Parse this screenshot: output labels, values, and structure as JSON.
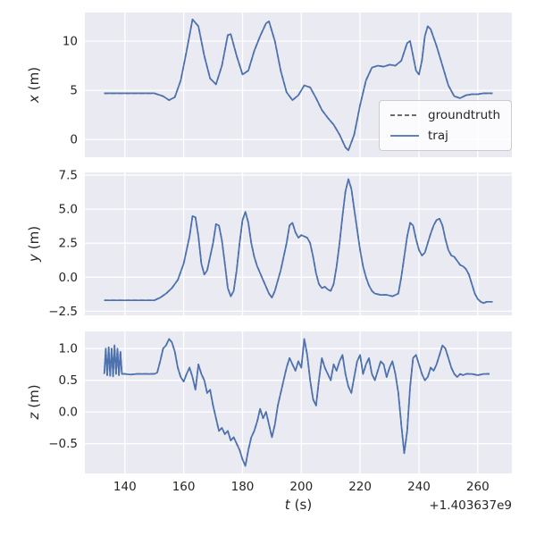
{
  "figure": {
    "background": "#ffffff",
    "axes_background": "#eaeaf2",
    "grid_color": "#ffffff",
    "text_color": "#262626",
    "traj_color": "#4c72b0",
    "groundtruth_color": "#3a3a3a"
  },
  "legend": {
    "position": "lower right of first subplot",
    "items": [
      {
        "label": "groundtruth",
        "style": "dashed",
        "color": "#3a3a3a"
      },
      {
        "label": "traj",
        "style": "solid",
        "color": "#4c72b0"
      }
    ]
  },
  "axes_common": {
    "xlabel_var": "t",
    "xlabel_unit": "(s)",
    "x_offset_text": "+1.403637e9",
    "xlim": [
      126.4,
      271.6
    ],
    "xticks": [
      140,
      160,
      180,
      200,
      220,
      240,
      260
    ],
    "xtick_labels": [
      "140",
      "160",
      "180",
      "200",
      "220",
      "240",
      "260"
    ],
    "grid": true
  },
  "chart_data": [
    {
      "id": "x",
      "type": "line",
      "ylabel_var": "x",
      "ylabel_unit": "(m)",
      "ylim": [
        -1.8,
        12.9
      ],
      "yticks": [
        0,
        5,
        10
      ],
      "ytick_labels": [
        "0",
        "5",
        "10"
      ],
      "series": [
        {
          "name": "groundtruth",
          "color": "#3a3a3a",
          "dash": "dashed",
          "values_ref": "values"
        },
        {
          "name": "traj",
          "color": "#4c72b0",
          "dash": "solid",
          "values_ref": "values"
        }
      ],
      "note": "groundtruth and traj overlap almost exactly",
      "x": [
        133,
        150,
        153,
        155,
        157,
        159,
        161,
        163,
        165,
        167,
        169,
        171,
        173,
        175,
        176,
        178,
        180,
        182,
        184,
        186,
        188,
        189,
        191,
        193,
        195,
        197,
        199,
        201,
        203,
        205,
        207,
        209,
        211,
        213,
        215,
        216,
        218,
        220,
        222,
        224,
        226,
        228,
        230,
        232,
        234,
        236,
        237,
        238,
        239,
        240,
        241,
        242,
        243,
        244,
        246,
        248,
        250,
        252,
        254,
        256,
        258,
        260,
        262,
        265
      ],
      "values": [
        4.7,
        4.7,
        4.4,
        4.0,
        4.3,
        6.0,
        9.0,
        12.2,
        11.5,
        8.5,
        6.2,
        5.6,
        7.5,
        10.6,
        10.7,
        8.5,
        6.6,
        7.0,
        9.0,
        10.5,
        11.8,
        12.0,
        10.0,
        7.0,
        4.8,
        4.0,
        4.5,
        5.5,
        5.3,
        4.2,
        3.0,
        2.2,
        1.5,
        0.5,
        -0.8,
        -1.1,
        0.5,
        3.5,
        6.0,
        7.3,
        7.5,
        7.4,
        7.6,
        7.5,
        8.0,
        9.8,
        10.0,
        8.5,
        7.0,
        6.6,
        8.0,
        10.5,
        11.5,
        11.2,
        9.5,
        7.5,
        5.5,
        4.4,
        4.2,
        4.5,
        4.6,
        4.6,
        4.7,
        4.7
      ]
    },
    {
      "id": "y",
      "type": "line",
      "ylabel_var": "y",
      "ylabel_unit": "(m)",
      "ylim": [
        -2.8,
        7.7
      ],
      "yticks": [
        -2.5,
        0,
        2.5,
        5,
        7.5
      ],
      "ytick_labels": [
        "−2.5",
        "0.0",
        "2.5",
        "5.0",
        "7.5"
      ],
      "series": [
        {
          "name": "groundtruth",
          "color": "#3a3a3a",
          "dash": "dashed",
          "values_ref": "values"
        },
        {
          "name": "traj",
          "color": "#4c72b0",
          "dash": "solid",
          "values_ref": "values"
        }
      ],
      "note": "groundtruth and traj overlap almost exactly",
      "x": [
        133,
        150,
        152,
        154,
        156,
        158,
        160,
        162,
        163,
        164,
        165,
        166,
        167,
        168,
        170,
        171,
        172,
        173,
        174,
        175,
        176,
        177,
        178,
        179,
        180,
        181,
        182,
        183,
        184,
        185,
        187,
        189,
        190,
        191,
        193,
        195,
        196,
        197,
        198,
        199,
        200,
        201,
        202,
        203,
        204,
        205,
        206,
        207,
        208,
        209,
        210,
        211,
        212,
        213,
        214,
        215,
        216,
        217,
        218,
        219,
        220,
        221,
        222,
        223,
        224,
        225,
        227,
        229,
        231,
        233,
        234,
        235,
        236,
        237,
        238,
        239,
        240,
        241,
        242,
        243,
        244,
        245,
        246,
        247,
        248,
        249,
        250,
        251,
        252,
        253,
        254,
        255,
        256,
        257,
        258,
        259,
        260,
        261,
        262,
        263,
        265
      ],
      "values": [
        -1.7,
        -1.7,
        -1.5,
        -1.2,
        -0.8,
        -0.2,
        1.0,
        3.0,
        4.5,
        4.4,
        3.0,
        1.0,
        0.2,
        0.5,
        2.5,
        3.9,
        3.8,
        2.7,
        1.0,
        -0.8,
        -1.4,
        -1.0,
        0.5,
        2.5,
        4.2,
        4.8,
        4.0,
        2.5,
        1.5,
        0.8,
        -0.2,
        -1.2,
        -1.5,
        -1.0,
        0.5,
        2.5,
        3.8,
        4.0,
        3.3,
        2.9,
        3.1,
        3.0,
        2.9,
        2.5,
        1.5,
        0.3,
        -0.5,
        -0.8,
        -0.7,
        -0.9,
        -1.0,
        -0.5,
        0.8,
        2.5,
        4.5,
        6.3,
        7.2,
        6.5,
        5.0,
        3.5,
        2.0,
        0.8,
        0.0,
        -0.6,
        -1.0,
        -1.2,
        -1.3,
        -1.3,
        -1.4,
        -1.2,
        0.0,
        1.5,
        3.0,
        4.0,
        3.8,
        2.8,
        2.0,
        1.6,
        1.8,
        2.5,
        3.2,
        3.8,
        4.2,
        4.3,
        3.8,
        2.8,
        2.0,
        1.6,
        1.5,
        1.2,
        0.9,
        0.8,
        0.6,
        0.2,
        -0.5,
        -1.2,
        -1.6,
        -1.8,
        -1.9,
        -1.8,
        -1.8
      ]
    },
    {
      "id": "z",
      "type": "line",
      "ylabel_var": "z",
      "ylabel_unit": "(m)",
      "ylim": [
        -0.97,
        1.27
      ],
      "yticks": [
        -0.5,
        0,
        0.5,
        1.0
      ],
      "ytick_labels": [
        "−0.5",
        "0.0",
        "0.5",
        "1.0"
      ],
      "series": [
        {
          "name": "groundtruth",
          "color": "#3a3a3a",
          "dash": "dashed",
          "values_ref": "values"
        },
        {
          "name": "traj",
          "color": "#4c72b0",
          "dash": "solid",
          "values_ref": "values"
        }
      ],
      "note": "groundtruth and traj overlap almost exactly; signal is noisy",
      "x": [
        133,
        133.5,
        134,
        134.5,
        135,
        135.5,
        136,
        136.5,
        137,
        137.5,
        138,
        138.5,
        139,
        140,
        142,
        144,
        146,
        148,
        150,
        151,
        152,
        153,
        154,
        155,
        156,
        157,
        158,
        159,
        160,
        161,
        162,
        163,
        164,
        165,
        166,
        167,
        168,
        169,
        170,
        171,
        172,
        173,
        174,
        175,
        176,
        177,
        178,
        179,
        180,
        181,
        182,
        183,
        184,
        185,
        186,
        187,
        188,
        189,
        190,
        191,
        192,
        193,
        194,
        195,
        196,
        197,
        198,
        199,
        200,
        201,
        202,
        203,
        204,
        205,
        206,
        207,
        208,
        209,
        210,
        211,
        212,
        213,
        214,
        215,
        216,
        217,
        218,
        219,
        220,
        221,
        222,
        223,
        224,
        225,
        226,
        227,
        228,
        229,
        230,
        231,
        232,
        233,
        234,
        235,
        236,
        237,
        238,
        239,
        240,
        241,
        242,
        243,
        244,
        245,
        246,
        247,
        248,
        249,
        250,
        251,
        252,
        253,
        254,
        255,
        256,
        258,
        260,
        262,
        264
      ],
      "values": [
        0.6,
        1.0,
        0.58,
        1.02,
        0.57,
        1.0,
        0.56,
        1.05,
        0.6,
        1.0,
        0.58,
        0.95,
        0.6,
        0.6,
        0.59,
        0.6,
        0.6,
        0.6,
        0.6,
        0.62,
        0.8,
        1.0,
        1.05,
        1.15,
        1.1,
        0.95,
        0.7,
        0.55,
        0.48,
        0.6,
        0.7,
        0.55,
        0.35,
        0.75,
        0.6,
        0.5,
        0.3,
        0.35,
        0.1,
        -0.1,
        -0.3,
        -0.25,
        -0.35,
        -0.3,
        -0.45,
        -0.4,
        -0.5,
        -0.6,
        -0.75,
        -0.85,
        -0.6,
        -0.4,
        -0.3,
        -0.15,
        0.05,
        -0.1,
        0.0,
        -0.2,
        -0.4,
        -0.2,
        0.1,
        0.3,
        0.5,
        0.7,
        0.85,
        0.75,
        0.65,
        0.8,
        0.7,
        1.15,
        0.9,
        0.5,
        0.2,
        0.1,
        0.5,
        0.85,
        0.7,
        0.6,
        0.5,
        0.75,
        0.65,
        0.8,
        0.9,
        0.6,
        0.4,
        0.3,
        0.55,
        0.8,
        0.9,
        0.6,
        0.75,
        0.85,
        0.6,
        0.5,
        0.65,
        0.8,
        0.75,
        0.55,
        0.7,
        0.8,
        0.6,
        0.3,
        -0.2,
        -0.65,
        -0.3,
        0.4,
        0.85,
        0.9,
        0.75,
        0.6,
        0.5,
        0.55,
        0.7,
        0.65,
        0.75,
        0.9,
        1.05,
        1.0,
        0.85,
        0.7,
        0.6,
        0.55,
        0.6,
        0.58,
        0.6,
        0.6,
        0.58,
        0.6,
        0.6
      ]
    }
  ]
}
